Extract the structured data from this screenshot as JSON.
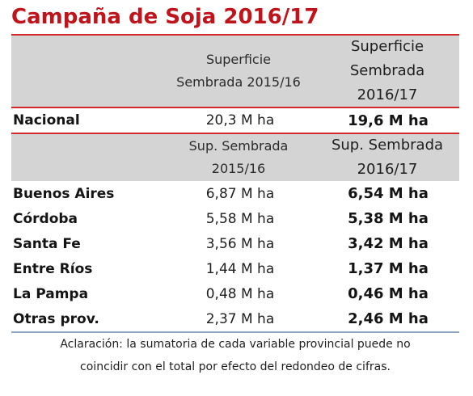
{
  "title": "Campaña de Soja 2016/17",
  "header1": {
    "col1": [
      "Superficie",
      "Sembrada 2015/16"
    ],
    "col2": [
      "Superficie",
      "Sembrada",
      "2016/17"
    ]
  },
  "nacional": {
    "label": "Nacional",
    "v2015": "20,3 M ha",
    "v2016": "19,6 M ha"
  },
  "header2": {
    "col1": [
      "Sup. Sembrada",
      "2015/16"
    ],
    "col2": [
      "Sup. Sembrada",
      "2016/17"
    ]
  },
  "provinces": [
    {
      "label": "Buenos Aires",
      "v2015": "6,87 M ha",
      "v2016": "6,54 M ha"
    },
    {
      "label": "Córdoba",
      "v2015": "5,58 M ha",
      "v2016": "5,38 M ha"
    },
    {
      "label": "Santa Fe",
      "v2015": "3,56 M ha",
      "v2016": "3,42 M ha"
    },
    {
      "label": "Entre Ríos",
      "v2015": "1,44 M ha",
      "v2016": "1,37 M ha"
    },
    {
      "label": "La Pampa",
      "v2015": "0,48 M ha",
      "v2016": "0,46 M ha"
    },
    {
      "label": "Otras prov.",
      "v2015": "2,37 M ha",
      "v2016": "2,46 M ha"
    }
  ],
  "note": [
    "Aclaración: la sumatoria de cada variable provincial puede no",
    "coincidir con el total por efecto del redondeo de cifras."
  ],
  "colors": {
    "title": "#c0141c",
    "rule": "#d42a2a",
    "header_bg": "#d4d4d4"
  }
}
